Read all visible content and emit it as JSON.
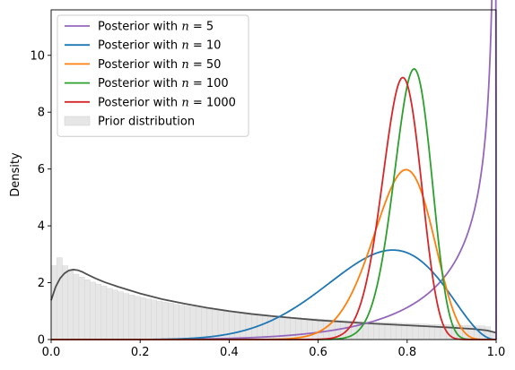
{
  "chart_data": {
    "type": "line",
    "title": "",
    "xlabel": "",
    "ylabel": "Density",
    "xlim": [
      0.0,
      1.0
    ],
    "ylim": [
      0,
      11.6
    ],
    "xticks": [
      "0.0",
      "0.2",
      "0.4",
      "0.6",
      "0.8",
      "1.0"
    ],
    "yticks": [
      "0",
      "2",
      "4",
      "6",
      "8",
      "10"
    ],
    "grid": false,
    "legend_position": "top-left",
    "series": [
      {
        "name": "Posterior with n = 5",
        "legend_prefix": "Posterior with ",
        "legend_var": "n",
        "legend_eq": " = 5",
        "color": "#9467bd",
        "alpha": 5.0,
        "beta": 0.5
      },
      {
        "name": "Posterior with n = 10",
        "legend_prefix": "Posterior with ",
        "legend_var": "n",
        "legend_eq": " = 10",
        "color": "#1f77b4",
        "alpha": 8.6,
        "beta": 3.3
      },
      {
        "name": "Posterior with n = 50",
        "legend_prefix": "Posterior with ",
        "legend_var": "n",
        "legend_eq": " = 50",
        "color": "#ff7f0e",
        "alpha": 29.0,
        "beta": 8.1
      },
      {
        "name": "Posterior with n = 100",
        "legend_prefix": "Posterior with ",
        "legend_var": "n",
        "legend_eq": " = 100",
        "color": "#2ca02c",
        "alpha": 70.0,
        "beta": 16.6
      },
      {
        "name": "Posterior with n = 1000",
        "legend_prefix": "Posterior with ",
        "legend_var": "n",
        "legend_eq": " = 1000",
        "color": "#d62728",
        "alpha": 70.0,
        "beta": 19.3
      }
    ],
    "prior": {
      "name": "Prior distribution",
      "histogram_color": "#e6e6e6",
      "density_color": "#505050",
      "bin_width": 0.0125,
      "bar_heights": [
        2.6,
        2.88,
        2.6,
        2.42,
        2.3,
        2.2,
        2.1,
        2.02,
        1.95,
        1.88,
        1.8,
        1.74,
        1.68,
        1.62,
        1.57,
        1.52,
        1.47,
        1.43,
        1.39,
        1.35,
        1.31,
        1.28,
        1.24,
        1.21,
        1.18,
        1.15,
        1.12,
        1.09,
        1.07,
        1.04,
        1.02,
        1.0,
        0.97,
        0.95,
        0.93,
        0.91,
        0.89,
        0.88,
        0.86,
        0.84,
        0.83,
        0.81,
        0.8,
        0.78,
        0.77,
        0.75,
        0.74,
        0.73,
        0.72,
        0.7,
        0.69,
        0.68,
        0.67,
        0.66,
        0.65,
        0.64,
        0.63,
        0.62,
        0.61,
        0.6,
        0.6,
        0.59,
        0.58,
        0.57,
        0.56,
        0.56,
        0.55,
        0.54,
        0.53,
        0.53,
        0.52,
        0.52,
        0.51,
        0.5,
        0.5,
        0.49,
        0.48,
        0.48,
        0.45,
        0.28
      ],
      "density_points": [
        [
          0.0,
          1.38
        ],
        [
          0.01,
          1.85
        ],
        [
          0.02,
          2.15
        ],
        [
          0.03,
          2.33
        ],
        [
          0.04,
          2.43
        ],
        [
          0.05,
          2.46
        ],
        [
          0.06,
          2.44
        ],
        [
          0.07,
          2.38
        ],
        [
          0.08,
          2.3
        ],
        [
          0.1,
          2.15
        ],
        [
          0.12,
          2.02
        ],
        [
          0.15,
          1.86
        ],
        [
          0.2,
          1.62
        ],
        [
          0.25,
          1.42
        ],
        [
          0.3,
          1.26
        ],
        [
          0.35,
          1.12
        ],
        [
          0.4,
          1.0
        ],
        [
          0.45,
          0.9
        ],
        [
          0.5,
          0.82
        ],
        [
          0.55,
          0.75
        ],
        [
          0.6,
          0.68
        ],
        [
          0.65,
          0.63
        ],
        [
          0.7,
          0.58
        ],
        [
          0.75,
          0.54
        ],
        [
          0.8,
          0.5
        ],
        [
          0.85,
          0.46
        ],
        [
          0.9,
          0.42
        ],
        [
          0.95,
          0.37
        ],
        [
          0.98,
          0.32
        ],
        [
          1.0,
          0.24
        ]
      ]
    }
  }
}
